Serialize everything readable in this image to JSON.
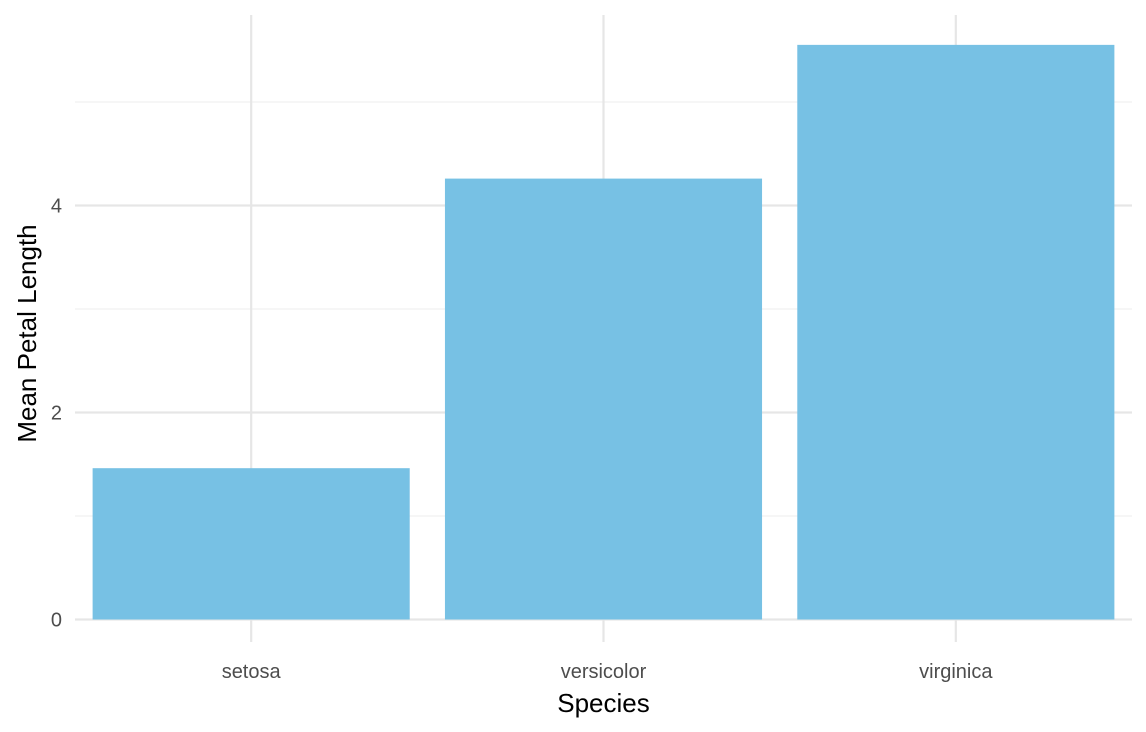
{
  "chart_data": {
    "type": "bar",
    "title": "",
    "xlabel": "Species",
    "ylabel": "Mean Petal Length",
    "categories": [
      "setosa",
      "versicolor",
      "virginica"
    ],
    "values": [
      1.462,
      4.26,
      5.552
    ],
    "ylim": [
      0,
      5.83
    ],
    "yticks": [
      0,
      2,
      4
    ],
    "yticks_minor": [
      1,
      3,
      5
    ],
    "grid": true,
    "legend": "none",
    "bar_color": "#77c1e4",
    "grid_color": "#e6e6e6"
  }
}
